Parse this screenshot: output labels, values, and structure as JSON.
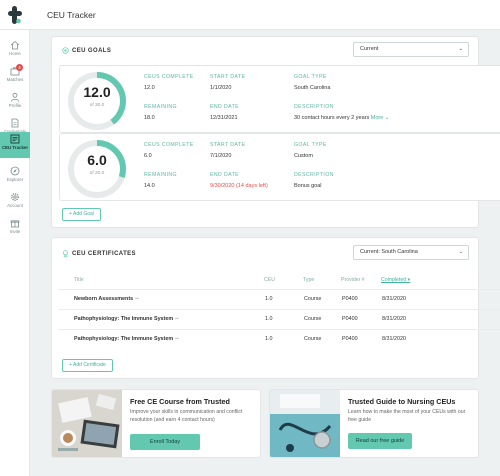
{
  "header": {
    "title": "CEU Tracker"
  },
  "sidebar": {
    "items": [
      {
        "label": "Home",
        "icon": "home-icon"
      },
      {
        "label": "Matches",
        "icon": "briefcase-icon",
        "badge": "4"
      },
      {
        "label": "Profile",
        "icon": "person-icon"
      },
      {
        "label": "Credentials",
        "icon": "document-icon"
      },
      {
        "label": "CEU Tracker",
        "icon": "tracker-icon"
      },
      {
        "label": "Explorer",
        "icon": "compass-icon"
      },
      {
        "label": "Account",
        "icon": "gear-icon"
      },
      {
        "label": "Invite",
        "icon": "gift-icon"
      }
    ]
  },
  "goals": {
    "heading": "CEU GOALS",
    "filter": "Current",
    "add_label": "+ Add Goal",
    "items": [
      {
        "ring_value": "12.0",
        "ring_sub": "of 30.0",
        "progress": 0.4,
        "complete_label": "CEUS COMPLETE",
        "complete": "12.0",
        "start_label": "START DATE",
        "start": "1/1/2020",
        "type_label": "GOAL TYPE",
        "type": "South Carolina",
        "remaining_label": "REMAINING",
        "remaining": "18.0",
        "end_label": "END DATE",
        "end": "12/31/2021",
        "desc_label": "DESCRIPTION",
        "desc": "30 contact hours every 2 years",
        "more": "More ⌄"
      },
      {
        "ring_value": "6.0",
        "ring_sub": "of 20.0",
        "progress": 0.3,
        "complete_label": "CEUS COMPLETE",
        "complete": "6.0",
        "start_label": "START DATE",
        "start": "7/1/2020",
        "type_label": "GOAL TYPE",
        "type": "Custom",
        "remaining_label": "REMAINING",
        "remaining": "14.0",
        "end_label": "END DATE",
        "end": "9/30/2020 (14 days left)",
        "desc_label": "DESCRIPTION",
        "desc": "Bonus goal"
      }
    ]
  },
  "certificates": {
    "heading": "CEU CERTIFICATES",
    "filter": "Current: South Carolina",
    "add_label": "+ Add Certificate",
    "columns": [
      "Title",
      "CEU",
      "Type",
      "Provider #",
      "Completed"
    ],
    "rows": [
      [
        "Newborn Assessments",
        "1.0",
        "Course",
        "P0400",
        "8/31/2020"
      ],
      [
        "Pathophysiology: The Immune System",
        "1.0",
        "Course",
        "P0400",
        "8/31/2020"
      ],
      [
        "Pathophysiology: The Immune System",
        "1.0",
        "Course",
        "P0400",
        "8/31/2020"
      ]
    ]
  },
  "promos": [
    {
      "title": "Free CE Course from Trusted",
      "text": "Improve your skills in communication and conflict resolution (and earn 4 contact hours)",
      "button": "Enroll Today"
    },
    {
      "title": "Trusted Guide to Nursing CEUs",
      "text": "Learn how to make the most of your CEUs with our free guide",
      "button": "Read our free guide"
    }
  ],
  "colors": {
    "accent": "#62c8b0",
    "ring_track": "#e6eaea",
    "danger": "#e34c4c"
  }
}
